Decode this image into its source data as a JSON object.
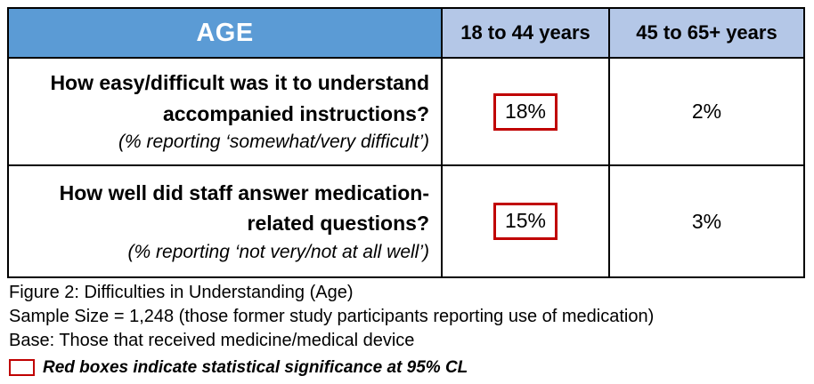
{
  "colors": {
    "header_blue": "#5B9BD5",
    "subheader_blue": "#B4C7E7",
    "significance_red": "#C00000",
    "border_black": "#000000"
  },
  "table": {
    "header": {
      "age_label": "AGE",
      "group1_label": "18 to 44 years",
      "group2_label": "45 to 65+ years"
    },
    "rows": [
      {
        "question": "How easy/difficult was it to understand accompanied instructions?",
        "subnote": "(% reporting ‘somewhat/very difficult’)",
        "value_18_44": "18%",
        "value_45_65": "2%",
        "significant_18_44": true,
        "significant_45_65": false
      },
      {
        "question": "How well did staff answer medication-related questions?",
        "subnote": "(% reporting ‘not very/not at all well’)",
        "value_18_44": "15%",
        "value_45_65": "3%",
        "significant_18_44": true,
        "significant_45_65": false
      }
    ]
  },
  "captions": {
    "figure_title": "Figure 2: Difficulties in Understanding (Age)",
    "sample_size": "Sample Size = 1,248 (those former study participants reporting use of medication)",
    "base": "Base: Those that received medicine/medical device",
    "legend": "Red boxes indicate statistical significance at 95% CL"
  },
  "chart_data": {
    "type": "table",
    "title": "Figure 2: Difficulties in Understanding (Age)",
    "columns": [
      "AGE",
      "18 to 44 years",
      "45 to 65+ years"
    ],
    "rows": [
      {
        "question": "How easy/difficult was it to understand accompanied instructions? (% reporting ‘somewhat/very difficult’)",
        "values": {
          "18 to 44 years": 18,
          "45 to 65+ years": 2
        },
        "unit": "%",
        "statistically_significant": [
          "18 to 44 years"
        ]
      },
      {
        "question": "How well did staff answer medication-related questions? (% reporting ‘not very/not at all well’)",
        "values": {
          "18 to 44 years": 15,
          "45 to 65+ years": 3
        },
        "unit": "%",
        "statistically_significant": [
          "18 to 44 years"
        ]
      }
    ],
    "notes": [
      "Sample Size = 1,248 (those former study participants reporting use of medication)",
      "Base: Those that received medicine/medical device",
      "Red boxes indicate statistical significance at 95% CL"
    ],
    "legend_position": "bottom-left"
  }
}
